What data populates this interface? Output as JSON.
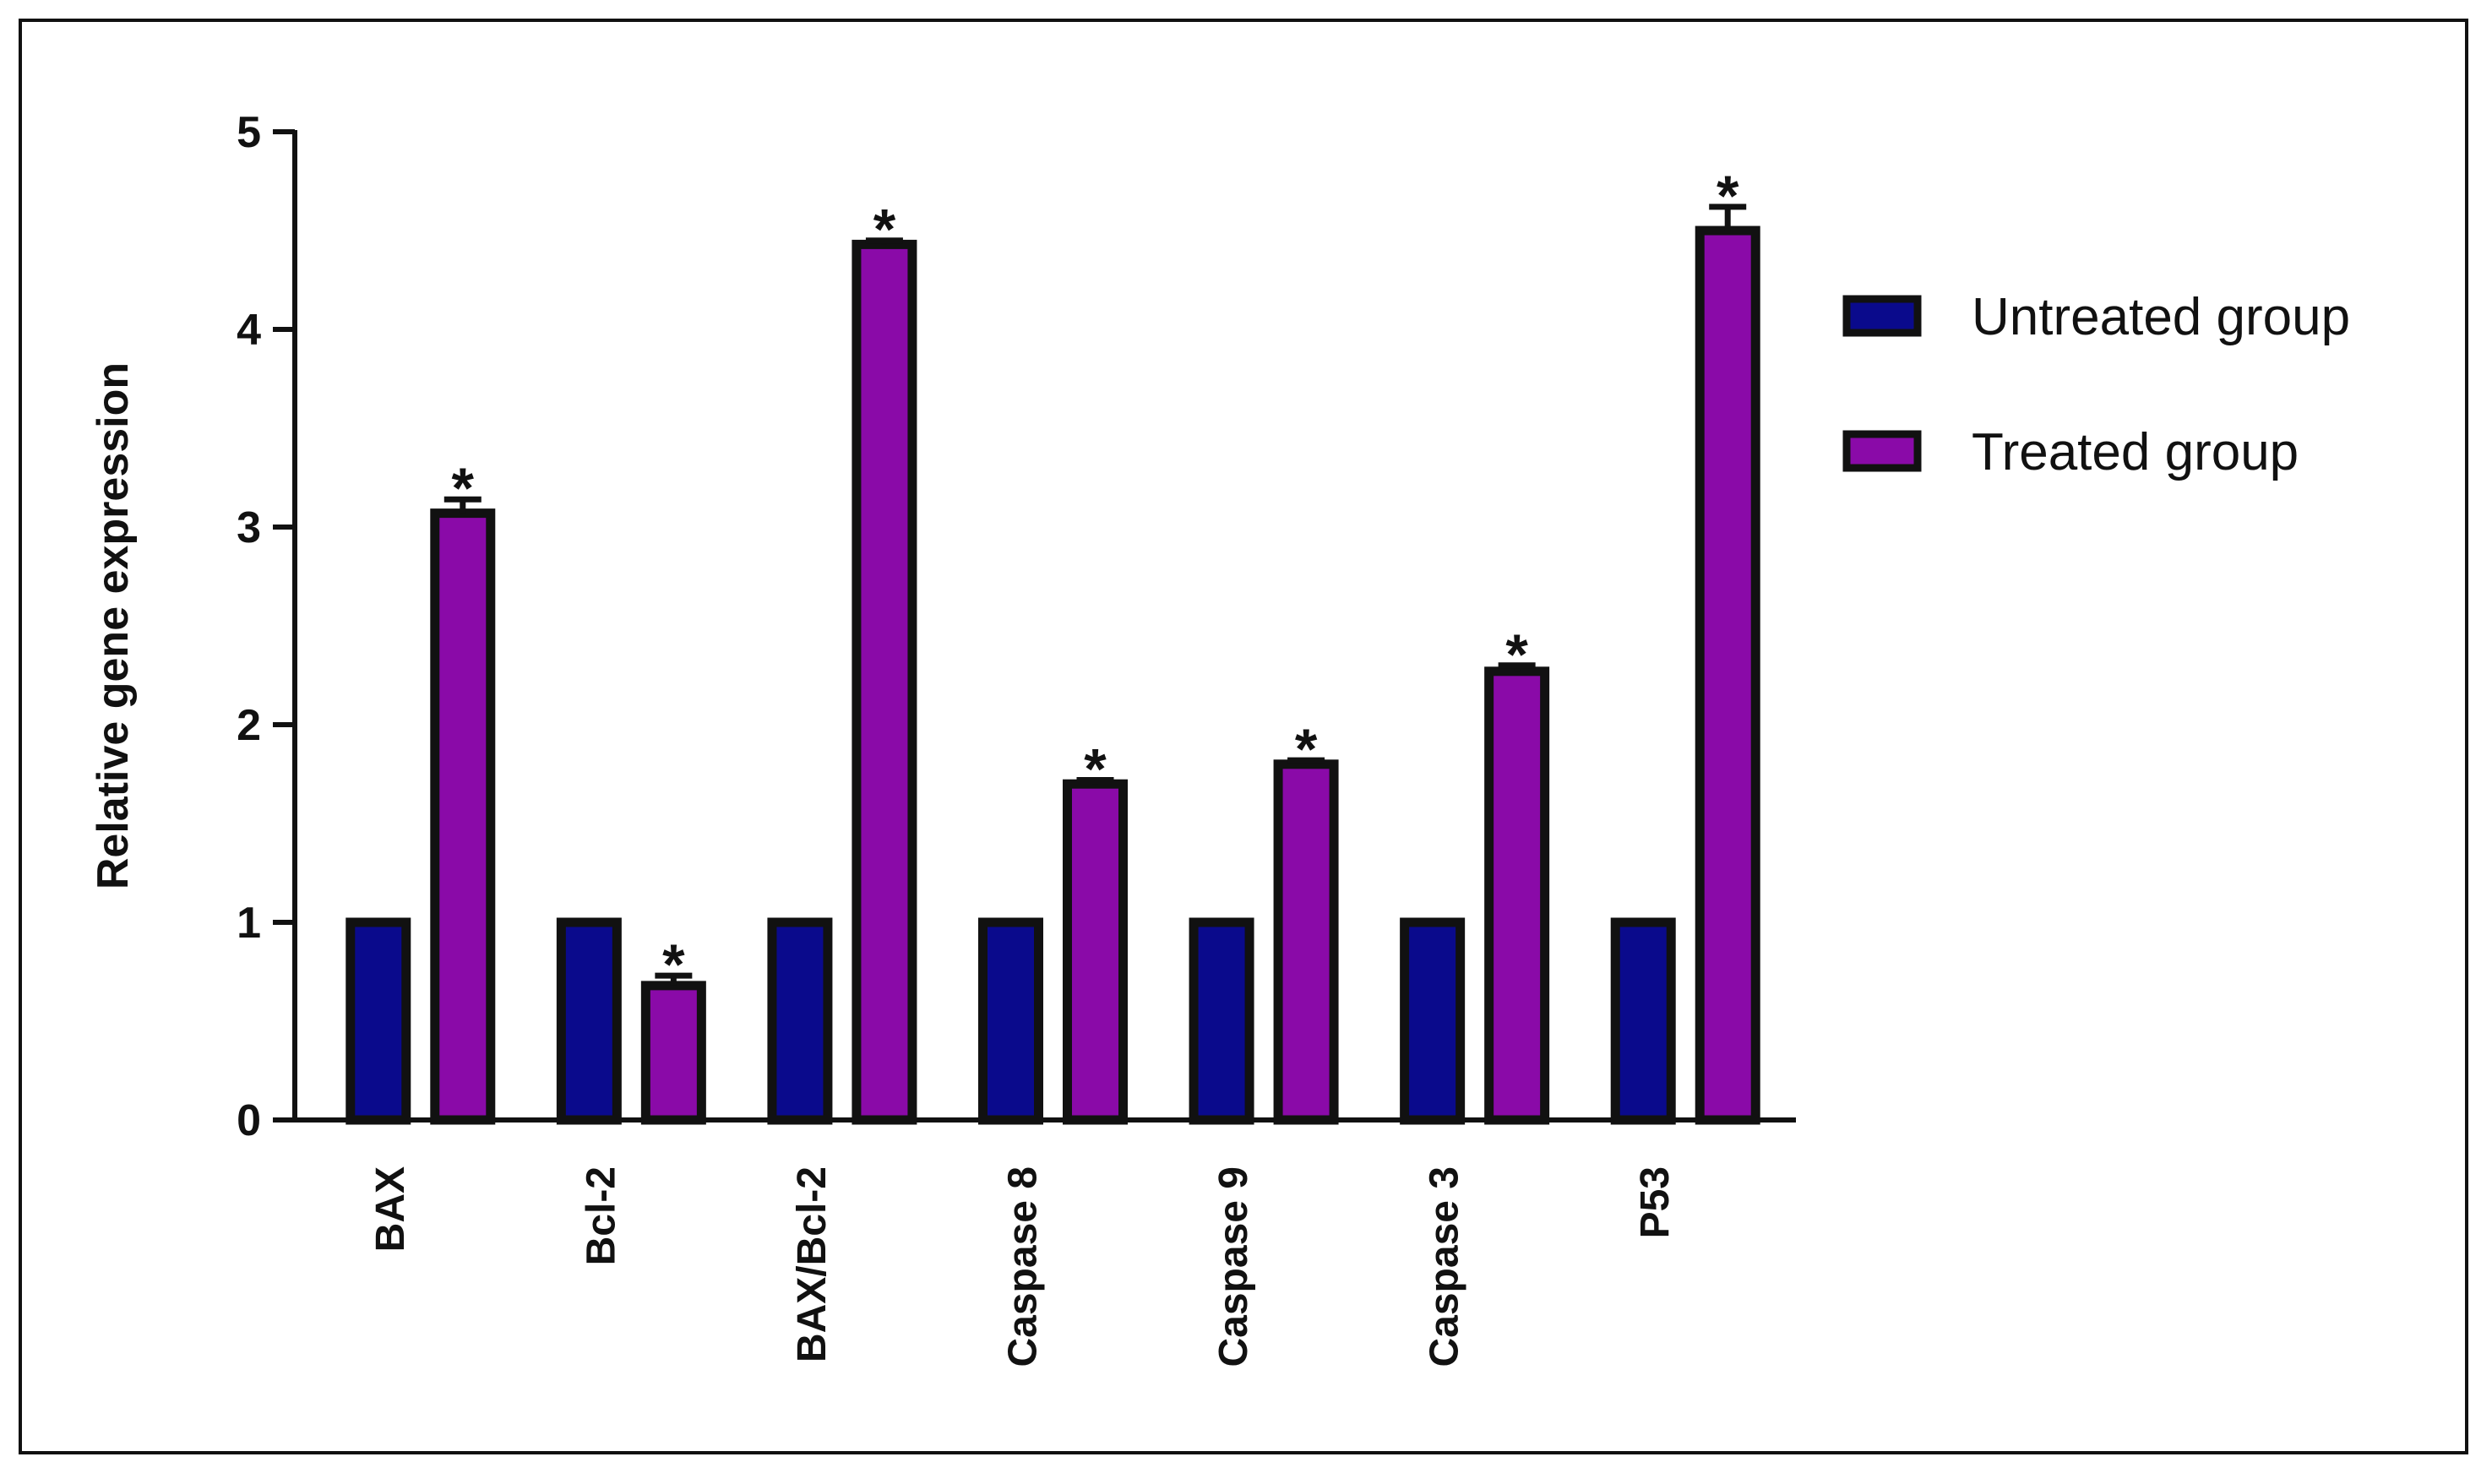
{
  "chart_data": {
    "type": "bar",
    "ylabel": "Relative gene expression",
    "xlabel": "",
    "ylim": [
      0,
      5
    ],
    "yticks": [
      0,
      1,
      2,
      3,
      4,
      5
    ],
    "categories": [
      "BAX",
      "Bcl-2",
      "BAX/Bcl-2",
      "Caspase 8",
      "Caspase 9",
      "Caspase 3",
      "P53"
    ],
    "series": [
      {
        "name": "Untreated group",
        "color": "#0a0a8c",
        "values": [
          1,
          1,
          1,
          1,
          1,
          1,
          1
        ],
        "errors": [
          0,
          0,
          0,
          0,
          0,
          0,
          0
        ]
      },
      {
        "name": "Treated group",
        "color": "#8a0aa8",
        "values": [
          3.07,
          0.68,
          4.43,
          1.7,
          1.8,
          2.27,
          4.5
        ],
        "errors": [
          0.07,
          0.05,
          0.02,
          0.02,
          0.02,
          0.03,
          0.12
        ]
      }
    ],
    "significance_marker": "*",
    "significance": [
      false,
      true
    ],
    "legend_position": "right",
    "grid": false
  }
}
